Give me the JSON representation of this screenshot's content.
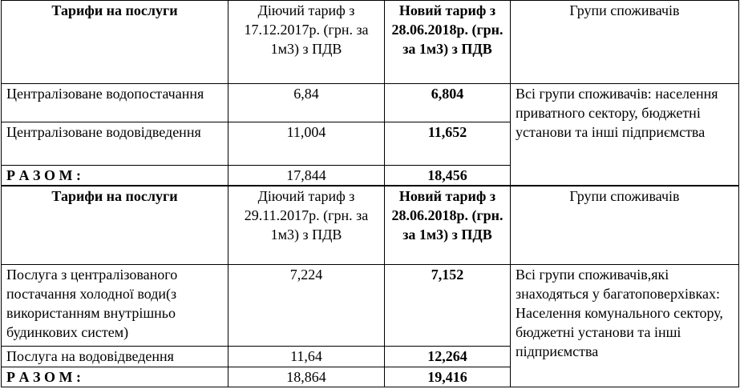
{
  "tables": [
    {
      "header": [
        "Тарифи на послуги",
        "Діючий тариф з 17.12.2017р. (грн. за 1м3) з ПДВ",
        "Новий тариф з 28.06.2018р. (грн. за 1м3) з ПДВ",
        "Групи споживачів"
      ],
      "rows": [
        [
          "Централізоване водопостачання",
          "6,84",
          "6,804"
        ],
        [
          "Централізоване водовідведення",
          "11,004",
          "11,652"
        ],
        [
          "Р А З О М :",
          "17,844",
          "18,456"
        ]
      ],
      "groups": "Всі групи споживачів: населення приватного сектору, бюджетні установи та інші підприємства"
    },
    {
      "header": [
        "Тарифи на послуги",
        "Діючий тариф з 29.11.2017р. (грн. за 1м3) з ПДВ",
        "Новий тариф з 28.06.2018р. (грн. за 1м3) з ПДВ",
        "Групи споживачів"
      ],
      "rows": [
        [
          "Послуга з централізованого постачання холодної води(з використанням внутрішньо будинкових систем)",
          "7,224",
          "7,152"
        ],
        [
          "Послуга на водовідведення",
          "11,64",
          "12,264"
        ],
        [
          "Р А З О М :",
          "18,864",
          "19,416"
        ]
      ],
      "groups": "Всі групи споживачів,які знаходяться у багатоповерхівках: Населення комунального сектору, бюджетні установи та інші підприємства"
    }
  ]
}
